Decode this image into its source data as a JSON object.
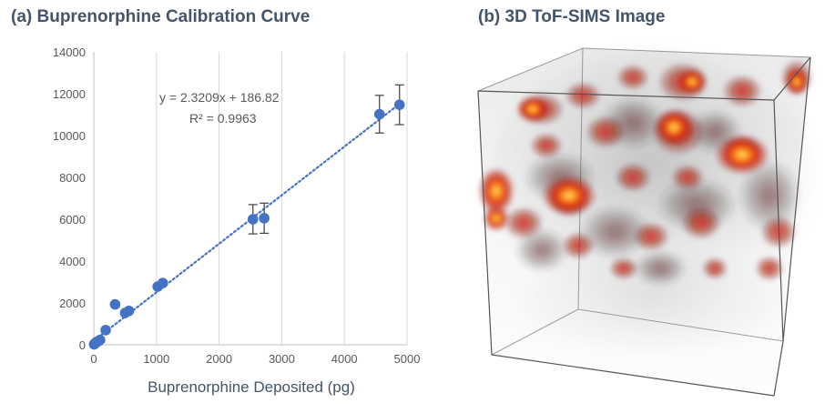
{
  "panel_a": {
    "title": "(a) Buprenorphine Calibration Curve",
    "equation": "y = 2.3209x + 186.82",
    "r_squared": "R² = 0.9963"
  },
  "panel_b": {
    "title": "(b) 3D ToF-SIMS Image"
  },
  "chart_data": {
    "type": "scatter",
    "title": "(a) Buprenorphine Calibration Curve",
    "xlabel": "Buprenorphine Deposited (pg)",
    "ylabel": "",
    "xlim": [
      0,
      5000
    ],
    "ylim": [
      0,
      14000
    ],
    "x_ticks": [
      "0",
      "1000",
      "2000",
      "3000",
      "4000",
      "5000"
    ],
    "y_ticks": [
      "0",
      "2000",
      "4000",
      "6000",
      "8000",
      "10000",
      "12000",
      "14000"
    ],
    "grid": "vertical",
    "marker_color": "#4472c4",
    "series": [
      {
        "x": [
          5,
          15,
          25,
          40,
          55,
          75,
          100,
          190,
          340,
          500,
          560,
          1020,
          1100,
          2540,
          2720,
          4560,
          4880
        ],
        "y": [
          20,
          60,
          90,
          110,
          150,
          180,
          230,
          700,
          1930,
          1520,
          1620,
          2780,
          2950,
          6000,
          6050,
          11020,
          11470
        ],
        "error": [
          0,
          0,
          0,
          0,
          0,
          0,
          0,
          0,
          0,
          0,
          0,
          0,
          0,
          700,
          720,
          900,
          950
        ]
      }
    ],
    "trendline": {
      "slope": 2.3209,
      "intercept": 186.82,
      "style": "dotted",
      "color": "#4472c4"
    }
  }
}
